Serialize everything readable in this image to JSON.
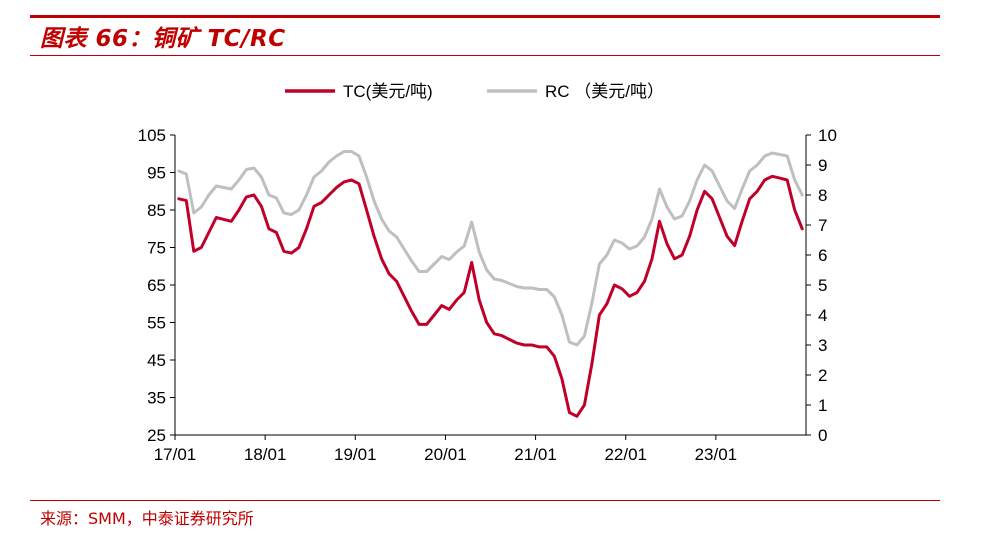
{
  "header": {
    "title": "图表 66：铜矿 TC/RC"
  },
  "source": {
    "text": "来源：SMM，中泰证券研究所"
  },
  "colors": {
    "brand": "#c00000",
    "tc_series": "#c0002a",
    "rc_series": "#bfbfbf"
  },
  "chart_data": {
    "type": "line",
    "title": "",
    "xlabel": "",
    "ylabel_left": "",
    "ylabel_right": "",
    "legend_position": "top-center",
    "grid": false,
    "x_ticks": [
      "17/01",
      "18/01",
      "19/01",
      "20/01",
      "21/01",
      "22/01",
      "23/01"
    ],
    "y_left": {
      "min": 25,
      "max": 105,
      "ticks": [
        105,
        95,
        85,
        75,
        65,
        55,
        45,
        35,
        25
      ]
    },
    "y_right": {
      "min": 0,
      "max": 10,
      "ticks": [
        10,
        9,
        8,
        7,
        6,
        5,
        4,
        3,
        2,
        1,
        0
      ]
    },
    "x_range": [
      "2017-01",
      "2023-12"
    ],
    "series": [
      {
        "name": "TC(美元/吨)",
        "axis": "left",
        "points": [
          [
            "2017-01",
            88
          ],
          [
            "2017-02",
            87.5
          ],
          [
            "2017-03",
            74
          ],
          [
            "2017-04",
            75
          ],
          [
            "2017-05",
            79
          ],
          [
            "2017-06",
            83
          ],
          [
            "2017-07",
            82.5
          ],
          [
            "2017-08",
            82
          ],
          [
            "2017-09",
            85
          ],
          [
            "2017-10",
            88.5
          ],
          [
            "2017-11",
            89
          ],
          [
            "2017-12",
            86
          ],
          [
            "2018-01",
            80
          ],
          [
            "2018-02",
            79
          ],
          [
            "2018-03",
            74
          ],
          [
            "2018-04",
            73.5
          ],
          [
            "2018-05",
            75
          ],
          [
            "2018-06",
            80
          ],
          [
            "2018-07",
            86
          ],
          [
            "2018-08",
            87
          ],
          [
            "2018-09",
            89
          ],
          [
            "2018-10",
            91
          ],
          [
            "2018-11",
            92.5
          ],
          [
            "2018-12",
            93
          ],
          [
            "2019-01",
            92
          ],
          [
            "2019-02",
            85
          ],
          [
            "2019-03",
            78
          ],
          [
            "2019-04",
            72
          ],
          [
            "2019-05",
            68
          ],
          [
            "2019-06",
            66
          ],
          [
            "2019-07",
            62
          ],
          [
            "2019-08",
            58
          ],
          [
            "2019-09",
            54.5
          ],
          [
            "2019-10",
            54.5
          ],
          [
            "2019-11",
            57
          ],
          [
            "2019-12",
            59.5
          ],
          [
            "2020-01",
            58.5
          ],
          [
            "2020-02",
            61
          ],
          [
            "2020-03",
            63
          ],
          [
            "2020-04",
            71
          ],
          [
            "2020-05",
            61
          ],
          [
            "2020-06",
            55
          ],
          [
            "2020-07",
            52
          ],
          [
            "2020-08",
            51.5
          ],
          [
            "2020-09",
            50.5
          ],
          [
            "2020-10",
            49.5
          ],
          [
            "2020-11",
            49
          ],
          [
            "2020-12",
            49
          ],
          [
            "2021-01",
            48.5
          ],
          [
            "2021-02",
            48.5
          ],
          [
            "2021-03",
            46
          ],
          [
            "2021-04",
            40
          ],
          [
            "2021-05",
            31
          ],
          [
            "2021-06",
            30
          ],
          [
            "2021-07",
            33
          ],
          [
            "2021-08",
            44
          ],
          [
            "2021-09",
            57
          ],
          [
            "2021-10",
            60
          ],
          [
            "2021-11",
            65
          ],
          [
            "2021-12",
            64
          ],
          [
            "2022-01",
            62
          ],
          [
            "2022-02",
            63
          ],
          [
            "2022-03",
            66
          ],
          [
            "2022-04",
            72
          ],
          [
            "2022-05",
            82
          ],
          [
            "2022-06",
            76
          ],
          [
            "2022-07",
            72
          ],
          [
            "2022-08",
            73
          ],
          [
            "2022-09",
            78
          ],
          [
            "2022-10",
            85
          ],
          [
            "2022-11",
            90
          ],
          [
            "2022-12",
            88
          ],
          [
            "2023-01",
            83
          ],
          [
            "2023-02",
            78
          ],
          [
            "2023-03",
            75.5
          ],
          [
            "2023-04",
            82
          ],
          [
            "2023-05",
            88
          ],
          [
            "2023-06",
            90
          ],
          [
            "2023-07",
            93
          ],
          [
            "2023-08",
            94
          ],
          [
            "2023-09",
            93.5
          ],
          [
            "2023-10",
            93
          ],
          [
            "2023-11",
            85
          ],
          [
            "2023-12",
            80
          ]
        ]
      },
      {
        "name": "RC （美元/吨）",
        "axis": "right",
        "points": [
          [
            "2017-01",
            8.8
          ],
          [
            "2017-02",
            8.7
          ],
          [
            "2017-03",
            7.4
          ],
          [
            "2017-04",
            7.6
          ],
          [
            "2017-05",
            8.0
          ],
          [
            "2017-06",
            8.3
          ],
          [
            "2017-07",
            8.25
          ],
          [
            "2017-08",
            8.2
          ],
          [
            "2017-09",
            8.5
          ],
          [
            "2017-10",
            8.85
          ],
          [
            "2017-11",
            8.9
          ],
          [
            "2017-12",
            8.6
          ],
          [
            "2018-01",
            8.0
          ],
          [
            "2018-02",
            7.9
          ],
          [
            "2018-03",
            7.4
          ],
          [
            "2018-04",
            7.35
          ],
          [
            "2018-05",
            7.5
          ],
          [
            "2018-06",
            8.0
          ],
          [
            "2018-07",
            8.6
          ],
          [
            "2018-08",
            8.8
          ],
          [
            "2018-09",
            9.1
          ],
          [
            "2018-10",
            9.3
          ],
          [
            "2018-11",
            9.45
          ],
          [
            "2018-12",
            9.45
          ],
          [
            "2019-01",
            9.3
          ],
          [
            "2019-02",
            8.6
          ],
          [
            "2019-03",
            7.8
          ],
          [
            "2019-04",
            7.2
          ],
          [
            "2019-05",
            6.8
          ],
          [
            "2019-06",
            6.6
          ],
          [
            "2019-07",
            6.2
          ],
          [
            "2019-08",
            5.8
          ],
          [
            "2019-09",
            5.45
          ],
          [
            "2019-10",
            5.45
          ],
          [
            "2019-11",
            5.7
          ],
          [
            "2019-12",
            5.95
          ],
          [
            "2020-01",
            5.85
          ],
          [
            "2020-02",
            6.1
          ],
          [
            "2020-03",
            6.3
          ],
          [
            "2020-04",
            7.1
          ],
          [
            "2020-05",
            6.1
          ],
          [
            "2020-06",
            5.5
          ],
          [
            "2020-07",
            5.2
          ],
          [
            "2020-08",
            5.15
          ],
          [
            "2020-09",
            5.05
          ],
          [
            "2020-10",
            4.95
          ],
          [
            "2020-11",
            4.9
          ],
          [
            "2020-12",
            4.9
          ],
          [
            "2021-01",
            4.85
          ],
          [
            "2021-02",
            4.85
          ],
          [
            "2021-03",
            4.6
          ],
          [
            "2021-04",
            4.0
          ],
          [
            "2021-05",
            3.1
          ],
          [
            "2021-06",
            3.0
          ],
          [
            "2021-07",
            3.3
          ],
          [
            "2021-08",
            4.4
          ],
          [
            "2021-09",
            5.7
          ],
          [
            "2021-10",
            6.0
          ],
          [
            "2021-11",
            6.5
          ],
          [
            "2021-12",
            6.4
          ],
          [
            "2022-01",
            6.2
          ],
          [
            "2022-02",
            6.3
          ],
          [
            "2022-03",
            6.6
          ],
          [
            "2022-04",
            7.2
          ],
          [
            "2022-05",
            8.2
          ],
          [
            "2022-06",
            7.6
          ],
          [
            "2022-07",
            7.2
          ],
          [
            "2022-08",
            7.3
          ],
          [
            "2022-09",
            7.8
          ],
          [
            "2022-10",
            8.5
          ],
          [
            "2022-11",
            9.0
          ],
          [
            "2022-12",
            8.8
          ],
          [
            "2023-01",
            8.3
          ],
          [
            "2023-02",
            7.8
          ],
          [
            "2023-03",
            7.55
          ],
          [
            "2023-04",
            8.2
          ],
          [
            "2023-05",
            8.8
          ],
          [
            "2023-06",
            9.0
          ],
          [
            "2023-07",
            9.3
          ],
          [
            "2023-08",
            9.4
          ],
          [
            "2023-09",
            9.35
          ],
          [
            "2023-10",
            9.3
          ],
          [
            "2023-11",
            8.5
          ],
          [
            "2023-12",
            8.0
          ]
        ]
      }
    ]
  }
}
